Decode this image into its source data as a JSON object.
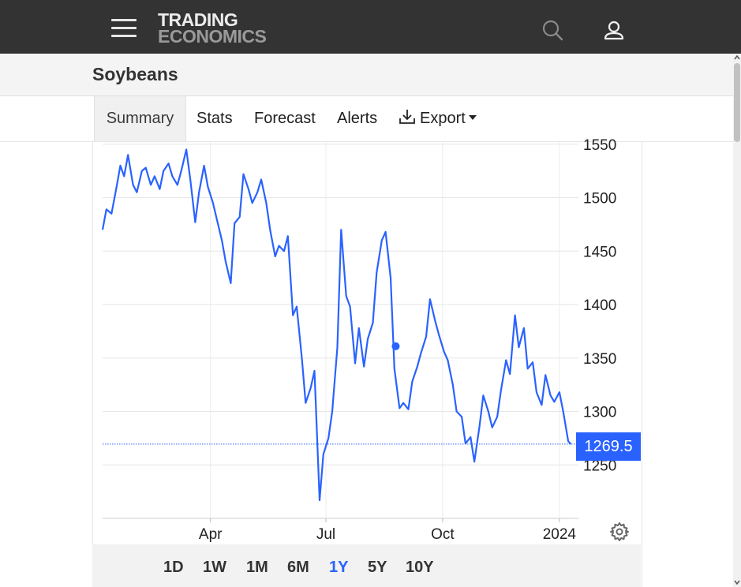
{
  "header": {
    "logo_line1": "TRADING",
    "logo_line2": "ECONOMICS",
    "menu_icon": "hamburger-menu-icon",
    "search_icon": "search-icon",
    "user_icon": "user-icon"
  },
  "page": {
    "title": "Soybeans"
  },
  "tabs": [
    {
      "label": "Summary",
      "active": true
    },
    {
      "label": "Stats"
    },
    {
      "label": "Forecast"
    },
    {
      "label": "Alerts"
    },
    {
      "label": "Export",
      "icon": "download-icon",
      "dropdown": true
    }
  ],
  "chart_data": {
    "type": "line",
    "title": "",
    "xlabel": "",
    "ylabel": "",
    "y_ticks": [
      1250,
      1300,
      1350,
      1400,
      1450,
      1500,
      1550
    ],
    "ylim": [
      1200,
      1555
    ],
    "x_ticks": [
      {
        "label": "Apr",
        "date": "2023-04-01"
      },
      {
        "label": "Jul",
        "date": "2023-07-01"
      },
      {
        "label": "Oct",
        "date": "2023-10-01"
      },
      {
        "label": "2024",
        "date": "2024-01-01"
      }
    ],
    "xlim": [
      "2023-01-06",
      "2024-01-16"
    ],
    "last_value": 1269.5,
    "last_value_label": "1269.5",
    "highlight_point": {
      "date": "2023-08-25",
      "value": 1361
    },
    "line_color": "#2962ff",
    "grid": true,
    "series": [
      {
        "values": [
          [
            "2023-01-06",
            1470
          ],
          [
            "2023-01-09",
            1489
          ],
          [
            "2023-01-13",
            1485
          ],
          [
            "2023-01-17",
            1510
          ],
          [
            "2023-01-20",
            1530
          ],
          [
            "2023-01-23",
            1520
          ],
          [
            "2023-01-26",
            1540
          ],
          [
            "2023-01-30",
            1512
          ],
          [
            "2023-02-02",
            1505
          ],
          [
            "2023-02-06",
            1525
          ],
          [
            "2023-02-09",
            1528
          ],
          [
            "2023-02-13",
            1512
          ],
          [
            "2023-02-16",
            1520
          ],
          [
            "2023-02-20",
            1508
          ],
          [
            "2023-02-23",
            1525
          ],
          [
            "2023-02-27",
            1532
          ],
          [
            "2023-03-02",
            1520
          ],
          [
            "2023-03-06",
            1512
          ],
          [
            "2023-03-09",
            1525
          ],
          [
            "2023-03-13",
            1545
          ],
          [
            "2023-03-16",
            1518
          ],
          [
            "2023-03-20",
            1477
          ],
          [
            "2023-03-23",
            1505
          ],
          [
            "2023-03-27",
            1530
          ],
          [
            "2023-03-30",
            1510
          ],
          [
            "2023-04-03",
            1495
          ],
          [
            "2023-04-06",
            1480
          ],
          [
            "2023-04-10",
            1460
          ],
          [
            "2023-04-13",
            1440
          ],
          [
            "2023-04-17",
            1420
          ],
          [
            "2023-04-20",
            1476
          ],
          [
            "2023-04-24",
            1482
          ],
          [
            "2023-04-27",
            1522
          ],
          [
            "2023-05-01",
            1508
          ],
          [
            "2023-05-04",
            1495
          ],
          [
            "2023-05-08",
            1505
          ],
          [
            "2023-05-11",
            1517
          ],
          [
            "2023-05-15",
            1495
          ],
          [
            "2023-05-18",
            1470
          ],
          [
            "2023-05-22",
            1445
          ],
          [
            "2023-05-25",
            1455
          ],
          [
            "2023-05-29",
            1450
          ],
          [
            "2023-06-01",
            1464
          ],
          [
            "2023-06-05",
            1390
          ],
          [
            "2023-06-08",
            1398
          ],
          [
            "2023-06-12",
            1350
          ],
          [
            "2023-06-15",
            1308
          ],
          [
            "2023-06-19",
            1322
          ],
          [
            "2023-06-22",
            1338
          ],
          [
            "2023-06-26",
            1217
          ],
          [
            "2023-06-29",
            1260
          ],
          [
            "2023-07-03",
            1275
          ],
          [
            "2023-07-06",
            1300
          ],
          [
            "2023-07-10",
            1360
          ],
          [
            "2023-07-13",
            1470
          ],
          [
            "2023-07-17",
            1408
          ],
          [
            "2023-07-20",
            1398
          ],
          [
            "2023-07-24",
            1345
          ],
          [
            "2023-07-27",
            1378
          ],
          [
            "2023-07-31",
            1342
          ],
          [
            "2023-08-03",
            1368
          ],
          [
            "2023-08-07",
            1383
          ],
          [
            "2023-08-10",
            1430
          ],
          [
            "2023-08-14",
            1460
          ],
          [
            "2023-08-17",
            1468
          ],
          [
            "2023-08-21",
            1425
          ],
          [
            "2023-08-24",
            1340
          ],
          [
            "2023-08-28",
            1303
          ],
          [
            "2023-08-31",
            1308
          ],
          [
            "2023-09-04",
            1302
          ],
          [
            "2023-09-07",
            1328
          ],
          [
            "2023-09-11",
            1342
          ],
          [
            "2023-09-14",
            1355
          ],
          [
            "2023-09-18",
            1370
          ],
          [
            "2023-09-21",
            1405
          ],
          [
            "2023-09-25",
            1385
          ],
          [
            "2023-09-28",
            1372
          ],
          [
            "2023-10-02",
            1356
          ],
          [
            "2023-10-05",
            1348
          ],
          [
            "2023-10-09",
            1325
          ],
          [
            "2023-10-12",
            1300
          ],
          [
            "2023-10-16",
            1295
          ],
          [
            "2023-10-19",
            1270
          ],
          [
            "2023-10-23",
            1276
          ],
          [
            "2023-10-26",
            1253
          ],
          [
            "2023-10-30",
            1286
          ],
          [
            "2023-11-02",
            1315
          ],
          [
            "2023-11-06",
            1300
          ],
          [
            "2023-11-09",
            1285
          ],
          [
            "2023-11-13",
            1295
          ],
          [
            "2023-11-16",
            1320
          ],
          [
            "2023-11-20",
            1348
          ],
          [
            "2023-11-23",
            1335
          ],
          [
            "2023-11-27",
            1390
          ],
          [
            "2023-11-30",
            1360
          ],
          [
            "2023-12-04",
            1378
          ],
          [
            "2023-12-07",
            1340
          ],
          [
            "2023-12-11",
            1346
          ],
          [
            "2023-12-14",
            1318
          ],
          [
            "2023-12-18",
            1306
          ],
          [
            "2023-12-21",
            1334
          ],
          [
            "2023-12-25",
            1315
          ],
          [
            "2023-12-28",
            1309
          ],
          [
            "2024-01-01",
            1318
          ],
          [
            "2024-01-04",
            1300
          ],
          [
            "2024-01-08",
            1272
          ],
          [
            "2024-01-10",
            1269.5
          ]
        ]
      }
    ]
  },
  "chart_controls": {
    "settings_icon": "gear-icon"
  },
  "ranges": [
    {
      "label": "1D"
    },
    {
      "label": "1W"
    },
    {
      "label": "1M"
    },
    {
      "label": "6M"
    },
    {
      "label": "1Y",
      "active": true
    },
    {
      "label": "5Y"
    },
    {
      "label": "10Y"
    }
  ]
}
